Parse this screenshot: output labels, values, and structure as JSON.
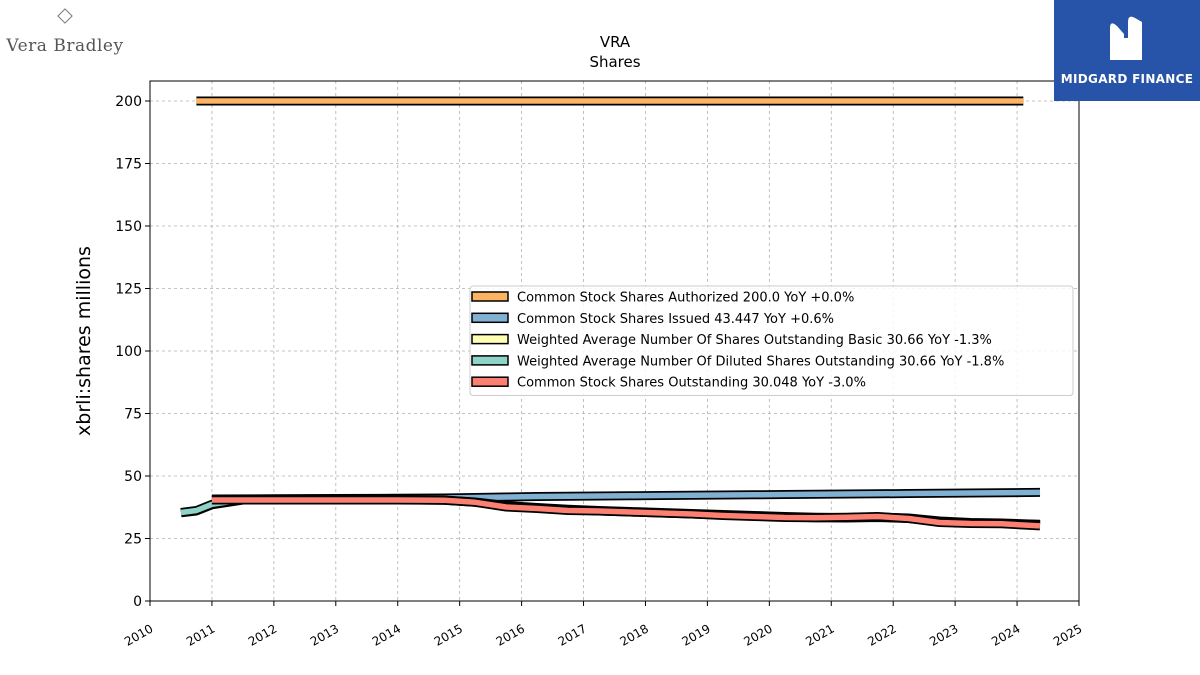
{
  "brand": {
    "company_logo_text": "Vera Bradley",
    "publisher_logo_text": "MIDGARD FINANCE"
  },
  "colors": {
    "authorized": "#fdb462",
    "issued": "#80b1d3",
    "weighted_basic": "#ffffb3",
    "weighted_diluted": "#8dd3c7",
    "outstanding": "#fb8072",
    "publisher_bg": "#2753a9"
  },
  "chart_data": {
    "type": "line",
    "title": "VRA",
    "subtitle": "Shares",
    "ylabel": "xbrli:shares millions",
    "xlabel": "",
    "xlim": [
      2010.0,
      2025.0
    ],
    "ylim": [
      0,
      208
    ],
    "x_ticks": [
      2010,
      2011,
      2012,
      2013,
      2014,
      2015,
      2016,
      2017,
      2018,
      2019,
      2020,
      2021,
      2022,
      2023,
      2024,
      2025
    ],
    "y_ticks": [
      0,
      25,
      50,
      75,
      100,
      125,
      150,
      175,
      200
    ],
    "grid": true,
    "legend_position": "center-right",
    "series": [
      {
        "name": "Common Stock Shares Authorized",
        "label": "Common Stock Shares Authorized  200.0 YoY +0.0%",
        "color_key": "authorized",
        "x": [
          2010.75,
          2011.0,
          2012.0,
          2013.0,
          2014.0,
          2015.0,
          2016.0,
          2017.0,
          2018.0,
          2019.0,
          2020.0,
          2021.0,
          2022.0,
          2023.0,
          2024.1
        ],
        "y": [
          200,
          200,
          200,
          200,
          200,
          200,
          200,
          200,
          200,
          200,
          200,
          200,
          200,
          200,
          200
        ]
      },
      {
        "name": "Common Stock Shares Issued",
        "label": "Common Stock Shares Issued  43.447 YoY +0.6%",
        "color_key": "issued",
        "x": [
          2011.0,
          2012.0,
          2013.0,
          2014.0,
          2014.75,
          2015.25,
          2015.75,
          2016.25,
          2016.75,
          2017.25,
          2017.75,
          2018.25,
          2018.75,
          2019.25,
          2019.75,
          2020.25,
          2020.75,
          2021.25,
          2021.75,
          2022.25,
          2022.75,
          2023.25,
          2023.75,
          2024.37
        ],
        "y": [
          40.8,
          40.9,
          41.0,
          41.1,
          41.2,
          41.4,
          41.6,
          41.8,
          41.9,
          42.0,
          42.1,
          42.2,
          42.3,
          42.4,
          42.5,
          42.6,
          42.7,
          42.8,
          42.9,
          43.0,
          43.1,
          43.2,
          43.3,
          43.447
        ]
      },
      {
        "name": "Weighted Average Number Of Shares Outstanding Basic",
        "label": "Weighted Average Number Of Shares Outstanding Basic  30.66 YoY -1.3%",
        "color_key": "weighted_basic",
        "x": [
          2010.5,
          2010.75,
          2011.0,
          2011.5,
          2012.0,
          2013.0,
          2014.0,
          2014.75,
          2015.25,
          2015.75,
          2016.25,
          2016.75,
          2017.25,
          2017.75,
          2018.25,
          2018.75,
          2019.25,
          2019.75,
          2020.25,
          2020.75,
          2021.25,
          2021.75,
          2022.25,
          2022.75,
          2023.25,
          2023.75,
          2024.37
        ],
        "y": [
          35.3,
          36.0,
          38.5,
          40.4,
          40.5,
          40.5,
          40.5,
          40.3,
          39.5,
          38.0,
          37.2,
          36.5,
          36.0,
          35.6,
          35.2,
          34.8,
          34.4,
          34.0,
          33.6,
          33.3,
          33.2,
          33.4,
          33.0,
          31.8,
          31.2,
          31.0,
          30.66
        ]
      },
      {
        "name": "Weighted Average Number Of Diluted Shares Outstanding",
        "label": "Weighted Average Number Of Diluted Shares Outstanding  30.66 YoY -1.8%",
        "color_key": "weighted_diluted",
        "x": [
          2010.5,
          2010.75,
          2011.0,
          2011.5,
          2012.0,
          2013.0,
          2014.0,
          2014.75,
          2015.25,
          2015.75,
          2016.25,
          2016.75,
          2017.25,
          2017.75,
          2018.25,
          2018.75,
          2019.25,
          2019.75,
          2020.25,
          2020.75,
          2021.25,
          2021.75,
          2022.25,
          2022.75,
          2023.25,
          2023.75,
          2024.37
        ],
        "y": [
          35.4,
          36.2,
          38.7,
          40.5,
          40.6,
          40.6,
          40.6,
          40.4,
          39.6,
          38.2,
          37.4,
          36.7,
          36.2,
          35.8,
          35.4,
          35.0,
          34.6,
          34.2,
          33.8,
          33.5,
          33.4,
          33.6,
          33.2,
          32.0,
          31.4,
          31.2,
          30.66
        ]
      },
      {
        "name": "Common Stock Shares Outstanding",
        "label": "Common Stock Shares Outstanding  30.048 YoY -3.0%",
        "color_key": "outstanding",
        "x": [
          2011.0,
          2012.0,
          2013.0,
          2014.0,
          2014.75,
          2015.25,
          2015.75,
          2016.25,
          2016.75,
          2017.25,
          2017.75,
          2018.25,
          2018.75,
          2019.25,
          2019.75,
          2020.25,
          2020.75,
          2021.25,
          2021.75,
          2022.25,
          2022.75,
          2023.25,
          2023.75,
          2024.37
        ],
        "y": [
          40.4,
          40.4,
          40.4,
          40.4,
          40.3,
          39.5,
          37.6,
          37.0,
          36.2,
          36.0,
          35.6,
          35.2,
          34.8,
          34.2,
          33.8,
          33.4,
          33.3,
          33.5,
          33.8,
          33.0,
          31.4,
          31.0,
          30.9,
          30.048
        ]
      }
    ]
  }
}
